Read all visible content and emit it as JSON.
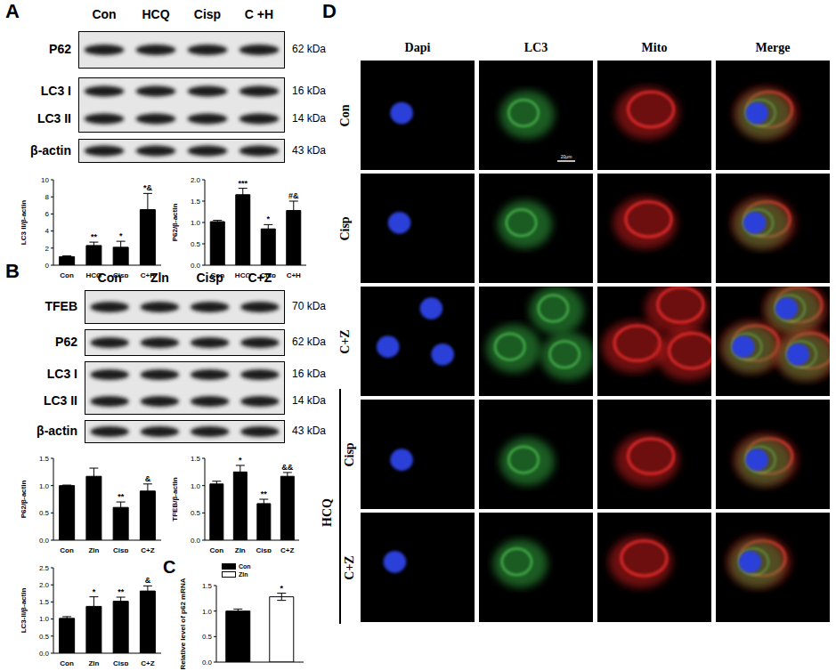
{
  "figure": {
    "A": {
      "label": "A",
      "blot": {
        "lanes": [
          "Con",
          "HCQ",
          "Cisp",
          "C +H"
        ],
        "boxes": [
          {
            "rows": [
              "P62"
            ],
            "kda": [
              "62 kDa"
            ]
          },
          {
            "rows": [
              "LC3 I",
              "LC3 II"
            ],
            "kda": [
              "16 kDa",
              "14 kDa"
            ]
          },
          {
            "rows": [
              "β-actin"
            ],
            "kda": [
              "43 kDa"
            ]
          }
        ]
      }
    },
    "B": {
      "label": "B",
      "blot": {
        "lanes": [
          "Con",
          "Zln",
          "Cisp",
          "C+Z"
        ],
        "boxes": [
          {
            "rows": [
              "TFEB"
            ],
            "kda": [
              "70 kDa"
            ]
          },
          {
            "rows": [
              "P62"
            ],
            "kda": [
              "62 kDa"
            ]
          },
          {
            "rows": [
              "LC3 I",
              "LC3 II"
            ],
            "kda": [
              "16 kDa",
              "14 kDa"
            ]
          },
          {
            "rows": [
              "β-actin"
            ],
            "kda": [
              "43 kDa"
            ]
          }
        ]
      }
    },
    "D": {
      "label": "D",
      "columns": [
        "Dapi",
        "LC3",
        "Mito",
        "Merge"
      ],
      "rows": [
        "Con",
        "Cisp",
        "C+Z"
      ],
      "group": {
        "label": "HCQ",
        "rows": [
          "Cisp",
          "C+Z"
        ]
      },
      "scale_bar": "20μm"
    }
  },
  "chart_data": [
    {
      "type": "bar",
      "y_label": "LC3 II/β-actin",
      "categories": [
        "Con",
        "HCQ",
        "Cisp",
        "C+H"
      ],
      "values": [
        1.0,
        2.3,
        2.1,
        6.5
      ],
      "errors": [
        0.1,
        0.4,
        0.7,
        1.9
      ],
      "annotations": [
        null,
        "**",
        "*",
        "*&"
      ],
      "color": "#000000",
      "ylim": [
        0,
        10
      ],
      "yticks": [
        0,
        2,
        4,
        6,
        8,
        10
      ]
    },
    {
      "type": "bar",
      "y_label": "P62/β-actin",
      "categories": [
        "Con",
        "HCQ",
        "Cisp",
        "C+H"
      ],
      "values": [
        1.02,
        1.65,
        0.85,
        1.28
      ],
      "errors": [
        0.03,
        0.15,
        0.1,
        0.22
      ],
      "annotations": [
        null,
        "***",
        "*",
        "#&"
      ],
      "color": "#000000",
      "ylim": [
        0,
        2
      ],
      "yticks": [
        {
          "value": 0,
          "label": "0.0"
        },
        0.5,
        {
          "value": 1,
          "label": "1.0"
        },
        1.5,
        {
          "value": 2,
          "label": "2.0"
        }
      ]
    },
    {
      "type": "bar",
      "y_label": "P62/β-actin",
      "categories": [
        "Con",
        "Zln",
        "Cisp",
        "C+Z"
      ],
      "values": [
        1.0,
        1.17,
        0.6,
        0.9
      ],
      "errors": [
        0.01,
        0.15,
        0.1,
        0.13
      ],
      "annotations": [
        null,
        null,
        "**",
        "&"
      ],
      "color": "#000000",
      "ylim": [
        0,
        1.5
      ],
      "yticks": [
        {
          "value": 0,
          "label": "0.0"
        },
        0.5,
        {
          "value": 1,
          "label": "1.0"
        },
        1.5
      ]
    },
    {
      "type": "bar",
      "y_label": "TFEB/β-actin",
      "categories": [
        "Con",
        "Zln",
        "Cisp",
        "C+Z"
      ],
      "values": [
        1.03,
        1.25,
        0.67,
        1.17
      ],
      "errors": [
        0.05,
        0.12,
        0.08,
        0.07
      ],
      "annotations": [
        null,
        "*",
        "**",
        "&&"
      ],
      "color": "#000000",
      "ylim": [
        0,
        1.5
      ],
      "yticks": [
        {
          "value": 0,
          "label": "0.0"
        },
        0.5,
        {
          "value": 1,
          "label": "1.0"
        },
        1.5
      ]
    },
    {
      "type": "bar",
      "y_label": "LC3-II/β-actin",
      "categories": [
        "Con",
        "Zln",
        "Cisp",
        "C+Z"
      ],
      "values": [
        1.02,
        1.37,
        1.52,
        1.82
      ],
      "errors": [
        0.05,
        0.28,
        0.12,
        0.15
      ],
      "annotations": [
        null,
        "*",
        "**",
        "&"
      ],
      "color": "#000000",
      "ylim": [
        0,
        2.5
      ],
      "yticks": [
        {
          "value": 0,
          "label": "0.0"
        },
        0.5,
        {
          "value": 1,
          "label": "1.0"
        },
        1.5,
        {
          "value": 2,
          "label": "2.0"
        },
        2.5
      ]
    },
    {
      "type": "bar",
      "panel": "C",
      "y_label": "Relative level of p62 mRNA",
      "categories": [
        "Con",
        "Zln"
      ],
      "values": [
        1.0,
        1.28
      ],
      "errors": [
        0.04,
        0.07
      ],
      "annotations": [
        null,
        "*"
      ],
      "colors": [
        "#000000",
        "#ffffff"
      ],
      "legend": "upper left",
      "tick_labels": "y",
      "ylim": [
        0,
        1.5
      ],
      "yticks": [
        {
          "value": 0,
          "label": "0.0"
        },
        0.5,
        {
          "value": 1,
          "label": "1.0"
        },
        1.5
      ]
    }
  ]
}
